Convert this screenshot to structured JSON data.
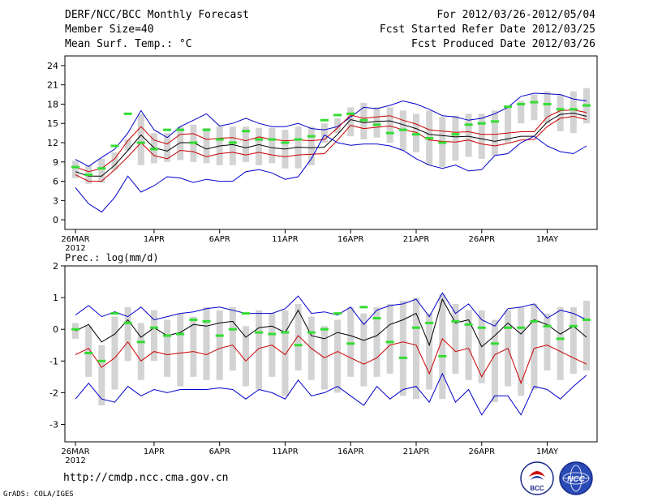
{
  "header": {
    "title": "DERF/NCC/BCC Monthly Forecast",
    "member_size": "Member Size=40",
    "variable": "Mean Surf. Temp.: °C",
    "period": "For 2012/03/26-2012/05/04",
    "started": "Fcst Started Refer Date 2012/03/25",
    "produced": "Fcst Produced Date 2012/03/26"
  },
  "footer": {
    "url": "http://cmdp.ncc.cma.gov.cn",
    "credit": "GrADS: COLA/IGES",
    "logo_left": "BCC",
    "logo_right": "NCC"
  },
  "colors": {
    "ensemble_bar": "#d3d3d3",
    "observed": "#33dd33",
    "mean": "#000000",
    "median": "#cc0000",
    "extremes": "#0000cc"
  },
  "chart_data": [
    {
      "type": "line",
      "title": "Mean Surf. Temp.: °C",
      "x_tick_labels": [
        "26MAR",
        "1APR",
        "6APR",
        "11APR",
        "16APR",
        "21APR",
        "26APR",
        "1MAY"
      ],
      "x_tick_days": [
        1,
        7,
        12,
        17,
        22,
        27,
        32,
        37
      ],
      "year_label": "2012",
      "ylim": [
        -1.5,
        25.5
      ],
      "yticks": [
        0,
        3,
        6,
        9,
        12,
        15,
        18,
        21,
        24
      ],
      "days": 40,
      "series": [
        {
          "name": "ensemble max",
          "color": "#0000cc",
          "values": [
            9.4,
            8.3,
            9.7,
            11,
            13.5,
            17,
            14,
            12.8,
            14.5,
            15.5,
            16.5,
            14.6,
            15,
            15.8,
            15,
            14.5,
            14.5,
            15,
            14.2,
            14,
            14.5,
            16,
            17.5,
            17.3,
            17.8,
            18.5,
            18,
            17.2,
            16.2,
            16,
            15.5,
            15.8,
            16.5,
            17.5,
            19.2,
            19.7,
            19.6,
            19.5,
            18.8,
            18.5
          ]
        },
        {
          "name": "ensemble mean",
          "color": "#000000",
          "values": [
            7.5,
            6.8,
            6.8,
            8.5,
            10.8,
            13.2,
            11.2,
            10.7,
            12,
            12,
            11,
            11.5,
            11.7,
            11.2,
            11.7,
            11.2,
            11,
            11.3,
            11.2,
            11.3,
            13.3,
            15.6,
            15.1,
            15.3,
            15.4,
            14.8,
            14.2,
            13.3,
            13.1,
            12.9,
            13,
            12.6,
            12.2,
            12.6,
            13,
            13,
            15.2,
            16.4,
            16.6,
            16.1
          ]
        },
        {
          "name": "ensemble median",
          "color": "#cc0000",
          "values": [
            7,
            6,
            6,
            7.8,
            9.8,
            12,
            10,
            9.5,
            10.8,
            10.6,
            9.8,
            10.3,
            10.5,
            10.1,
            10.5,
            10.1,
            9.8,
            10.1,
            10.2,
            10.3,
            12.4,
            14.7,
            14.2,
            14.4,
            14.6,
            14,
            13.6,
            12.4,
            12.2,
            12.1,
            12.4,
            11.8,
            11.5,
            11.9,
            12.4,
            12.5,
            14.5,
            15.8,
            16.1,
            15.6
          ]
        },
        {
          "name": "mean (upper)",
          "color": "#cc0000",
          "values": [
            8.2,
            7.5,
            8,
            9.5,
            12.3,
            14.5,
            12.4,
            11.8,
            13.3,
            13.4,
            12.5,
            12.7,
            12.8,
            12.3,
            12.9,
            12.5,
            12.3,
            12.4,
            12.3,
            12.5,
            14.3,
            16.3,
            15.8,
            16,
            16.2,
            15.5,
            14.9,
            14,
            13.8,
            13.6,
            13.7,
            13.3,
            13.3,
            13.5,
            13.7,
            13.7,
            16,
            17,
            17.1,
            16.7
          ]
        },
        {
          "name": "ensemble min",
          "color": "#0000cc",
          "values": [
            5,
            2.5,
            1.2,
            3.5,
            6.8,
            4.3,
            5.3,
            6.7,
            6.5,
            5.8,
            6.3,
            6,
            6,
            7.5,
            7.8,
            7.3,
            6.3,
            6.7,
            9.5,
            13.2,
            12,
            11.6,
            11.8,
            11.8,
            11.5,
            10.8,
            9.5,
            8.5,
            8,
            8.5,
            7.6,
            7.8,
            10,
            10.3,
            12,
            13,
            11.5,
            10.6,
            10.3,
            11.5
          ]
        }
      ],
      "observed": [
        8.2,
        7,
        8,
        11.5,
        16.5,
        12,
        11,
        14,
        14,
        12,
        14,
        12.5,
        12,
        13.8,
        12.5,
        12.5,
        12,
        12.5,
        13,
        15.5,
        16.3,
        16.5,
        15.5,
        14.8,
        13.5,
        14,
        13.3,
        12.7,
        12,
        13.3,
        14.8,
        15,
        15.3,
        17.6,
        18,
        18.3,
        18,
        17.2,
        17.2,
        17.8
      ],
      "bar_lows": [
        6.5,
        5.6,
        5.8,
        7.8,
        10.8,
        8.5,
        8.8,
        9,
        9.3,
        9,
        8.8,
        8.5,
        8.5,
        9,
        8.5,
        8.8,
        8,
        8,
        8.5,
        12,
        13.5,
        13,
        12.5,
        12.8,
        12,
        10.8,
        10.5,
        8.5,
        8.2,
        9.2,
        9.8,
        9.5,
        10,
        12,
        15,
        15.5,
        15,
        13.8,
        13.5,
        15
      ],
      "bar_highs": [
        9.2,
        8.5,
        9.5,
        10.5,
        12.5,
        16.5,
        13.5,
        13.5,
        14.5,
        14.8,
        14.3,
        14.5,
        14.5,
        14.5,
        14.3,
        14.3,
        14,
        14.5,
        14.5,
        15,
        15.8,
        17.5,
        18.2,
        17.5,
        17.5,
        17,
        16.5,
        17,
        16,
        16.2,
        16.5,
        16.5,
        17,
        17.5,
        18.5,
        19.5,
        20,
        19.5,
        20,
        20.5
      ]
    },
    {
      "type": "line",
      "title": "Prec.: log(mm/d)",
      "x_tick_labels": [
        "26MAR",
        "1APR",
        "6APR",
        "11APR",
        "16APR",
        "21APR",
        "26APR",
        "1MAY"
      ],
      "x_tick_days": [
        1,
        7,
        12,
        17,
        22,
        27,
        32,
        37
      ],
      "year_label": "2012",
      "ylim": [
        -3.55,
        2.0
      ],
      "yticks": [
        -3,
        -2,
        -1,
        0,
        1,
        2
      ],
      "days": 40,
      "series": [
        {
          "name": "ensemble max",
          "color": "#0000cc",
          "values": [
            0.45,
            0.75,
            0.4,
            0.55,
            0.4,
            0.7,
            0.3,
            0.4,
            0.5,
            0.55,
            0.65,
            0.7,
            0.6,
            0.5,
            0.5,
            0.5,
            0.65,
            1.05,
            0.5,
            0.55,
            0.45,
            0.7,
            0.15,
            0.6,
            0.75,
            0.8,
            0.95,
            0.4,
            1.15,
            0.5,
            0.8,
            0.3,
            0.1,
            0.65,
            0.7,
            0.8,
            0.35,
            0.6,
            0.5,
            0.3
          ]
        },
        {
          "name": "ensemble mean",
          "color": "#000000",
          "values": [
            -0.05,
            0.15,
            -0.4,
            -0.15,
            0.3,
            -0.25,
            0.05,
            -0.2,
            -0.1,
            0.15,
            0.1,
            0.2,
            0.25,
            -0.25,
            0.05,
            0.1,
            -0.1,
            0.6,
            -0.2,
            -0.3,
            -0.1,
            -0.2,
            -0.35,
            -0.2,
            0.15,
            0.3,
            0.5,
            -0.5,
            0.95,
            0.2,
            0.3,
            -0.55,
            -0.2,
            0.2,
            -0.15,
            0.3,
            0.15,
            -0.15,
            0.1,
            -0.25
          ]
        },
        {
          "name": "ensemble median",
          "color": "#cc0000",
          "values": [
            -0.8,
            -0.6,
            -1.2,
            -0.9,
            -0.4,
            -1,
            -0.7,
            -0.8,
            -0.75,
            -0.7,
            -0.8,
            -0.6,
            -0.5,
            -1,
            -0.6,
            -0.5,
            -0.8,
            -0.2,
            -0.6,
            -0.9,
            -0.7,
            -0.9,
            -1.1,
            -0.9,
            -0.5,
            -0.4,
            -0.5,
            -1.4,
            -0.3,
            -0.7,
            -0.6,
            -1.5,
            -0.8,
            -0.6,
            -1.7,
            -0.6,
            -0.5,
            -0.7,
            -0.9,
            -1.1
          ]
        },
        {
          "name": "ensemble min",
          "color": "#0000cc",
          "values": [
            -2.2,
            -1.7,
            -2.2,
            -2.3,
            -1.8,
            -2.1,
            -1.9,
            -2,
            -1.9,
            -1.9,
            -1.9,
            -1.85,
            -1.9,
            -2.2,
            -1.9,
            -2,
            -2.2,
            -1.6,
            -2.1,
            -2,
            -1.8,
            -2.1,
            -2.4,
            -1.8,
            -2.2,
            -1.9,
            -1.8,
            -2.3,
            -1.4,
            -2.3,
            -1.9,
            -2.7,
            -2.1,
            -2.1,
            -2.7,
            -1.8,
            -1.9,
            -2.2,
            -1.8,
            -1.45
          ]
        }
      ],
      "observed": [
        0,
        -0.75,
        -1,
        0.5,
        0.2,
        -0.4,
        0.05,
        -0.2,
        -0.15,
        0.3,
        0.25,
        -0.2,
        0,
        0.5,
        -0.1,
        -0.15,
        -0.1,
        -0.5,
        -0.1,
        0,
        0.5,
        -0.45,
        0.7,
        0.35,
        -0.4,
        -0.9,
        0.05,
        0.2,
        -0.85,
        0.25,
        0.15,
        0.05,
        -0.45,
        0.05,
        0.05,
        0.25,
        0.1,
        -0.3,
        0.1,
        0.3
      ],
      "bar_lows": [
        -0.3,
        -1.5,
        -2.4,
        -1.9,
        -1,
        -1.6,
        -1,
        -1.5,
        -1.8,
        -1.5,
        -1.6,
        -1.6,
        -1.3,
        -1.8,
        -1.9,
        -1.5,
        -2.1,
        -1.3,
        -1.6,
        -1.9,
        -2,
        -1.5,
        -1.8,
        -1.5,
        -1.4,
        -2.1,
        -2.2,
        -1.9,
        -2.2,
        -1.4,
        -1.6,
        -1.7,
        -2.3,
        -1.8,
        -2.1,
        -1.9,
        -1.3,
        -1.6,
        -1.4,
        -1.3
      ],
      "bar_highs": [
        0.2,
        0.1,
        -0.5,
        0.4,
        0.7,
        0.2,
        0.6,
        0.3,
        0.5,
        0.4,
        0.7,
        0.6,
        0.7,
        0.1,
        0.6,
        0.5,
        0.6,
        0.8,
        0.4,
        0.1,
        0.3,
        0.7,
        0.5,
        0.7,
        0.8,
        0.9,
        1,
        0.5,
        1.1,
        0.8,
        0.6,
        0.6,
        0.3,
        0.6,
        0.7,
        0.8,
        0.5,
        0.7,
        0.7,
        0.9
      ]
    }
  ]
}
